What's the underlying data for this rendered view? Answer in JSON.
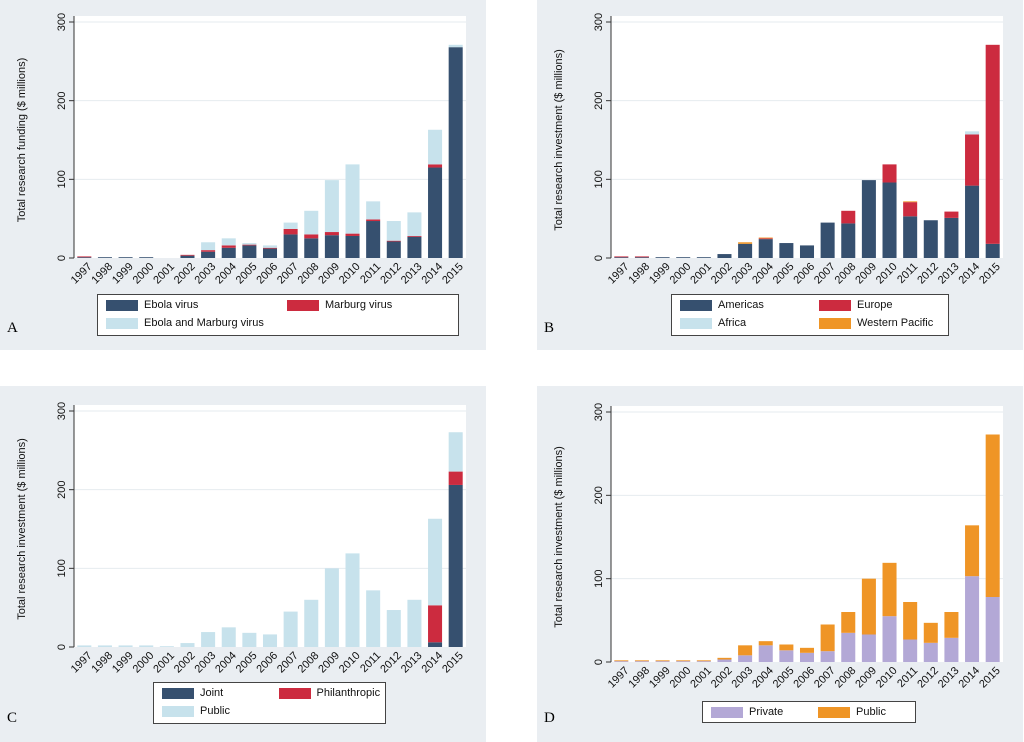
{
  "colors": {
    "navy": "#36506f",
    "red": "#cc2b3f",
    "lightblue": "#c7e2ec",
    "orange": "#ef9526",
    "lavender": "#b3a8d6"
  },
  "chart_data": [
    {
      "id": "A",
      "panel_label": "A",
      "type": "bar",
      "stacked": true,
      "ylabel": "Total research funding ($ millions)",
      "ylim": [
        0,
        300
      ],
      "yticks": [
        "0",
        "100",
        "200",
        "300"
      ],
      "categories": [
        "1997",
        "1998",
        "1999",
        "2000",
        "2001",
        "2002",
        "2003",
        "2004",
        "2005",
        "2006",
        "2007",
        "2008",
        "2009",
        "2010",
        "2011",
        "2012",
        "2013",
        "2014",
        "2015"
      ],
      "series": [
        {
          "name": "Ebola virus",
          "color": "#36506f",
          "values": [
            1,
            1,
            1,
            1,
            0,
            3,
            8,
            13,
            16,
            12,
            30,
            25,
            29,
            28,
            47,
            21,
            27,
            115,
            268
          ]
        },
        {
          "name": "Marburg virus",
          "color": "#cc2b3f",
          "values": [
            1,
            0,
            0,
            0,
            0,
            1,
            2,
            3,
            1,
            1,
            7,
            5,
            4,
            3,
            2,
            1,
            1,
            4,
            0
          ]
        },
        {
          "name": "Ebola and Marburg virus",
          "color": "#c7e2ec",
          "values": [
            0,
            0,
            0,
            0,
            0,
            0,
            10,
            9,
            2,
            3,
            8,
            30,
            66,
            88,
            23,
            25,
            30,
            44,
            3
          ]
        }
      ],
      "legend": {
        "columns": 2,
        "items": [
          {
            "label": "Ebola virus",
            "color": "#36506f"
          },
          {
            "label": "Marburg virus",
            "color": "#cc2b3f"
          },
          {
            "label": "Ebola and Marburg virus",
            "color": "#c7e2ec"
          }
        ]
      }
    },
    {
      "id": "B",
      "panel_label": "B",
      "type": "bar",
      "stacked": true,
      "ylabel": "Total research investment ($ millions)",
      "ylim": [
        0,
        300
      ],
      "yticks": [
        "0",
        "100",
        "200",
        "300"
      ],
      "categories": [
        "1997",
        "1998",
        "1999",
        "2000",
        "2001",
        "2002",
        "2003",
        "2004",
        "2005",
        "2006",
        "2007",
        "2008",
        "2009",
        "2010",
        "2011",
        "2012",
        "2013",
        "2014",
        "2015"
      ],
      "series": [
        {
          "name": "Americas",
          "color": "#36506f",
          "values": [
            1,
            1,
            1,
            1,
            1,
            5,
            18,
            24,
            19,
            16,
            45,
            44,
            99,
            96,
            53,
            48,
            51,
            92,
            18
          ]
        },
        {
          "name": "Europe",
          "color": "#cc2b3f",
          "values": [
            1,
            1,
            0,
            0,
            0,
            0,
            0,
            1,
            0,
            0,
            0,
            16,
            0,
            23,
            18,
            0,
            8,
            65,
            253
          ]
        },
        {
          "name": "Africa",
          "color": "#c7e2ec",
          "values": [
            0,
            0,
            0,
            0,
            0,
            0,
            0,
            0,
            0,
            0,
            0,
            0,
            0,
            0,
            0,
            0,
            0,
            4,
            0
          ]
        },
        {
          "name": "Western Pacific",
          "color": "#ef9526",
          "values": [
            0,
            0,
            0,
            0,
            0,
            0,
            2,
            1,
            0,
            0,
            0,
            0,
            0,
            0,
            1,
            0,
            0,
            0,
            0
          ]
        }
      ],
      "legend": {
        "columns": 2,
        "items": [
          {
            "label": "Americas",
            "color": "#36506f"
          },
          {
            "label": "Europe",
            "color": "#cc2b3f"
          },
          {
            "label": "Africa",
            "color": "#c7e2ec"
          },
          {
            "label": "Western Pacific",
            "color": "#ef9526"
          }
        ]
      }
    },
    {
      "id": "C",
      "panel_label": "C",
      "type": "bar",
      "stacked": true,
      "ylabel": "Total research investment ($ millions)",
      "ylim": [
        0,
        300
      ],
      "yticks": [
        "0",
        "100",
        "200",
        "300"
      ],
      "categories": [
        "1997",
        "1998",
        "1999",
        "2000",
        "2001",
        "2002",
        "2003",
        "2004",
        "2005",
        "2006",
        "2007",
        "2008",
        "2009",
        "2010",
        "2011",
        "2012",
        "2013",
        "2014",
        "2015"
      ],
      "series": [
        {
          "name": "Joint",
          "color": "#36506f",
          "values": [
            0,
            0,
            0,
            0,
            0,
            0,
            0,
            0,
            0,
            0,
            0,
            0,
            0,
            0,
            0,
            0,
            0,
            6,
            206
          ]
        },
        {
          "name": "Philanthropic",
          "color": "#cc2b3f",
          "values": [
            0,
            0,
            0,
            0,
            0,
            0,
            0,
            0,
            0,
            0,
            0,
            0,
            0,
            0,
            0,
            0,
            0,
            47,
            17
          ]
        },
        {
          "name": "Public",
          "color": "#c7e2ec",
          "values": [
            2,
            2,
            2,
            2,
            1,
            5,
            19,
            25,
            18,
            16,
            45,
            60,
            100,
            119,
            72,
            47,
            60,
            110,
            50
          ]
        }
      ],
      "legend": {
        "columns": 2,
        "items": [
          {
            "label": "Joint",
            "color": "#36506f"
          },
          {
            "label": "Philanthropic",
            "color": "#cc2b3f"
          },
          {
            "label": "Public",
            "color": "#c7e2ec"
          }
        ]
      }
    },
    {
      "id": "D",
      "panel_label": "D",
      "type": "bar",
      "stacked": true,
      "ylabel": "Total research investment ($ millions)",
      "ylim": [
        0,
        300
      ],
      "yticks": [
        "0",
        "100",
        "200",
        "300"
      ],
      "categories": [
        "1997",
        "1998",
        "1999",
        "2000",
        "2001",
        "2002",
        "2003",
        "2004",
        "2005",
        "2006",
        "2007",
        "2008",
        "2009",
        "2010",
        "2011",
        "2012",
        "2013",
        "2014",
        "2015"
      ],
      "series": [
        {
          "name": "Private",
          "color": "#b3a8d6",
          "values": [
            1,
            1,
            1,
            1,
            1,
            3,
            8,
            20,
            14,
            11,
            13,
            35,
            33,
            55,
            27,
            23,
            29,
            103,
            78
          ]
        },
        {
          "name": "Public",
          "color": "#ef9526",
          "values": [
            1,
            1,
            1,
            1,
            1,
            2,
            12,
            5,
            7,
            6,
            32,
            25,
            67,
            64,
            45,
            24,
            31,
            61,
            195
          ]
        }
      ],
      "legend": {
        "columns": 2,
        "items": [
          {
            "label": "Private",
            "color": "#b3a8d6"
          },
          {
            "label": "Public",
            "color": "#ef9526"
          }
        ]
      }
    }
  ]
}
